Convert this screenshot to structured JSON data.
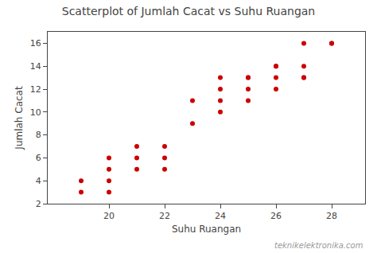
{
  "chart_data": {
    "type": "scatter",
    "title": "Scatterplot of Jumlah Cacat vs Suhu Ruangan",
    "xlabel": "Suhu Ruangan",
    "ylabel": "Jumlah Cacat",
    "x": [
      19,
      19,
      20,
      20,
      20,
      20,
      21,
      21,
      21,
      22,
      22,
      22,
      23,
      23,
      24,
      24,
      24,
      24,
      25,
      25,
      25,
      25,
      26,
      26,
      26,
      26,
      27,
      27,
      27,
      27,
      28,
      28
    ],
    "values": [
      3,
      4,
      3,
      4,
      5,
      6,
      5,
      6,
      7,
      5,
      6,
      7,
      9,
      11,
      10,
      11,
      12,
      13,
      11,
      12,
      13,
      13,
      12,
      13,
      14,
      14,
      13,
      14,
      16,
      13,
      16,
      16
    ],
    "color": "#cc0000",
    "xlim": [
      17.8,
      29.2
    ],
    "ylim": [
      2,
      17
    ],
    "xticks": [
      20,
      22,
      24,
      26,
      28
    ],
    "yticks": [
      2,
      4,
      6,
      8,
      10,
      12,
      14,
      16
    ],
    "grid": false,
    "annotations": [
      "teknikelektronika.com"
    ]
  }
}
